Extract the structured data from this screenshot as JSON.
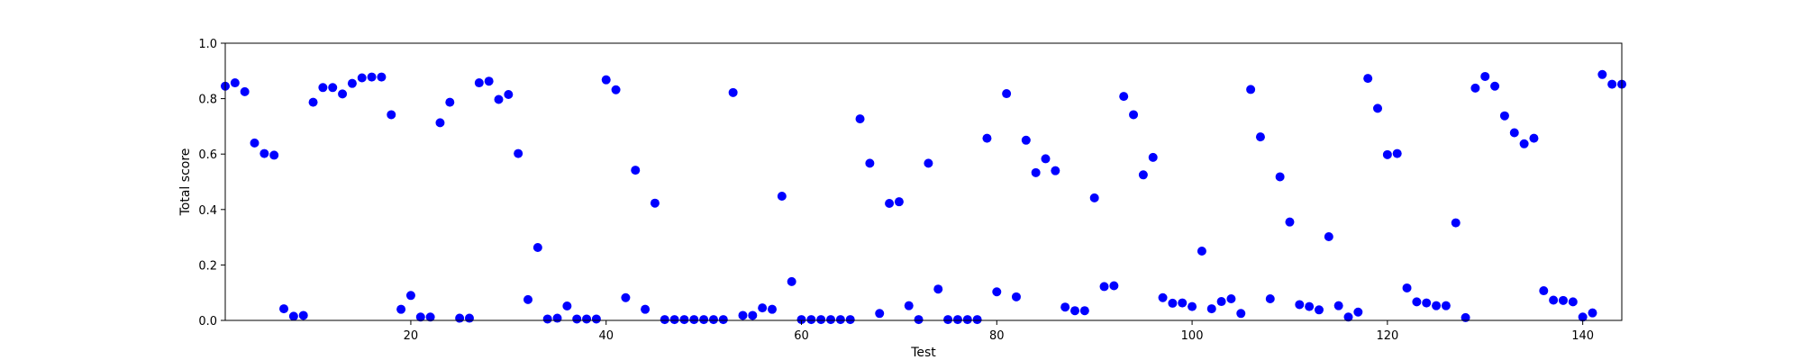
{
  "chart_data": {
    "type": "scatter",
    "xlabel": "Test",
    "ylabel": "Total score",
    "xlim": [
      1,
      144
    ],
    "ylim": [
      0,
      1.0
    ],
    "xticks": [
      20,
      40,
      60,
      80,
      100,
      120,
      140
    ],
    "yticks": [
      0.0,
      0.2,
      0.4,
      0.6,
      0.8,
      1.0
    ],
    "marker_color": "#0000ff",
    "grid": false,
    "series": [
      {
        "x": [
          1,
          2,
          3,
          4,
          5,
          6,
          7,
          8,
          9,
          10,
          11,
          12,
          13,
          14,
          15,
          16,
          17,
          18,
          19,
          20,
          21,
          22,
          23,
          24,
          25,
          26,
          27,
          28,
          29,
          30,
          31,
          32,
          33,
          34,
          35,
          36,
          37,
          38,
          39,
          40,
          41,
          42,
          43,
          44,
          45,
          46,
          47,
          48,
          49,
          50,
          51,
          52,
          53,
          54,
          55,
          56,
          57,
          58,
          59,
          60,
          61,
          62,
          63,
          64,
          65,
          66,
          67,
          68,
          69,
          70,
          71,
          72,
          73,
          74,
          75,
          76,
          77,
          78,
          79,
          80,
          81,
          82,
          83,
          84,
          85,
          86,
          87,
          88,
          89,
          90,
          91,
          92,
          93,
          94,
          95,
          96,
          97,
          98,
          99,
          100,
          101,
          102,
          103,
          104,
          105,
          106,
          107,
          108,
          109,
          110,
          111,
          112,
          113,
          114,
          115,
          116,
          117,
          118,
          119,
          120,
          121,
          122,
          123,
          124,
          125,
          126,
          127,
          128,
          129,
          130,
          131,
          132,
          133,
          134,
          135,
          136,
          137,
          138,
          139,
          140,
          141,
          142,
          143,
          144
        ],
        "y": [
          0.845,
          0.857,
          0.825,
          0.64,
          0.602,
          0.596,
          0.042,
          0.015,
          0.018,
          0.787,
          0.84,
          0.84,
          0.817,
          0.855,
          0.875,
          0.878,
          0.878,
          0.742,
          0.04,
          0.09,
          0.012,
          0.012,
          0.713,
          0.787,
          0.008,
          0.008,
          0.857,
          0.863,
          0.797,
          0.815,
          0.602,
          0.075,
          0.263,
          0.005,
          0.008,
          0.052,
          0.005,
          0.005,
          0.005,
          0.868,
          0.832,
          0.082,
          0.542,
          0.04,
          0.423,
          0.003,
          0.003,
          0.003,
          0.003,
          0.003,
          0.003,
          0.003,
          0.822,
          0.018,
          0.018,
          0.045,
          0.04,
          0.448,
          0.14,
          0.003,
          0.003,
          0.003,
          0.003,
          0.003,
          0.003,
          0.727,
          0.567,
          0.025,
          0.422,
          0.428,
          0.053,
          0.003,
          0.567,
          0.113,
          0.003,
          0.003,
          0.003,
          0.003,
          0.657,
          0.103,
          0.818,
          0.085,
          0.65,
          0.533,
          0.583,
          0.54,
          0.048,
          0.035,
          0.035,
          0.442,
          0.122,
          0.125,
          0.808,
          0.742,
          0.525,
          0.588,
          0.082,
          0.062,
          0.063,
          0.05,
          0.25,
          0.042,
          0.068,
          0.078,
          0.025,
          0.833,
          0.662,
          0.078,
          0.518,
          0.355,
          0.057,
          0.05,
          0.038,
          0.302,
          0.053,
          0.012,
          0.03,
          0.873,
          0.765,
          0.598,
          0.602,
          0.117,
          0.067,
          0.063,
          0.053,
          0.053,
          0.352,
          0.01,
          0.838,
          0.88,
          0.845,
          0.738,
          0.677,
          0.637,
          0.657,
          0.107,
          0.073,
          0.072,
          0.067,
          0.012,
          0.027,
          0.887,
          0.852,
          0.852
        ]
      }
    ]
  }
}
